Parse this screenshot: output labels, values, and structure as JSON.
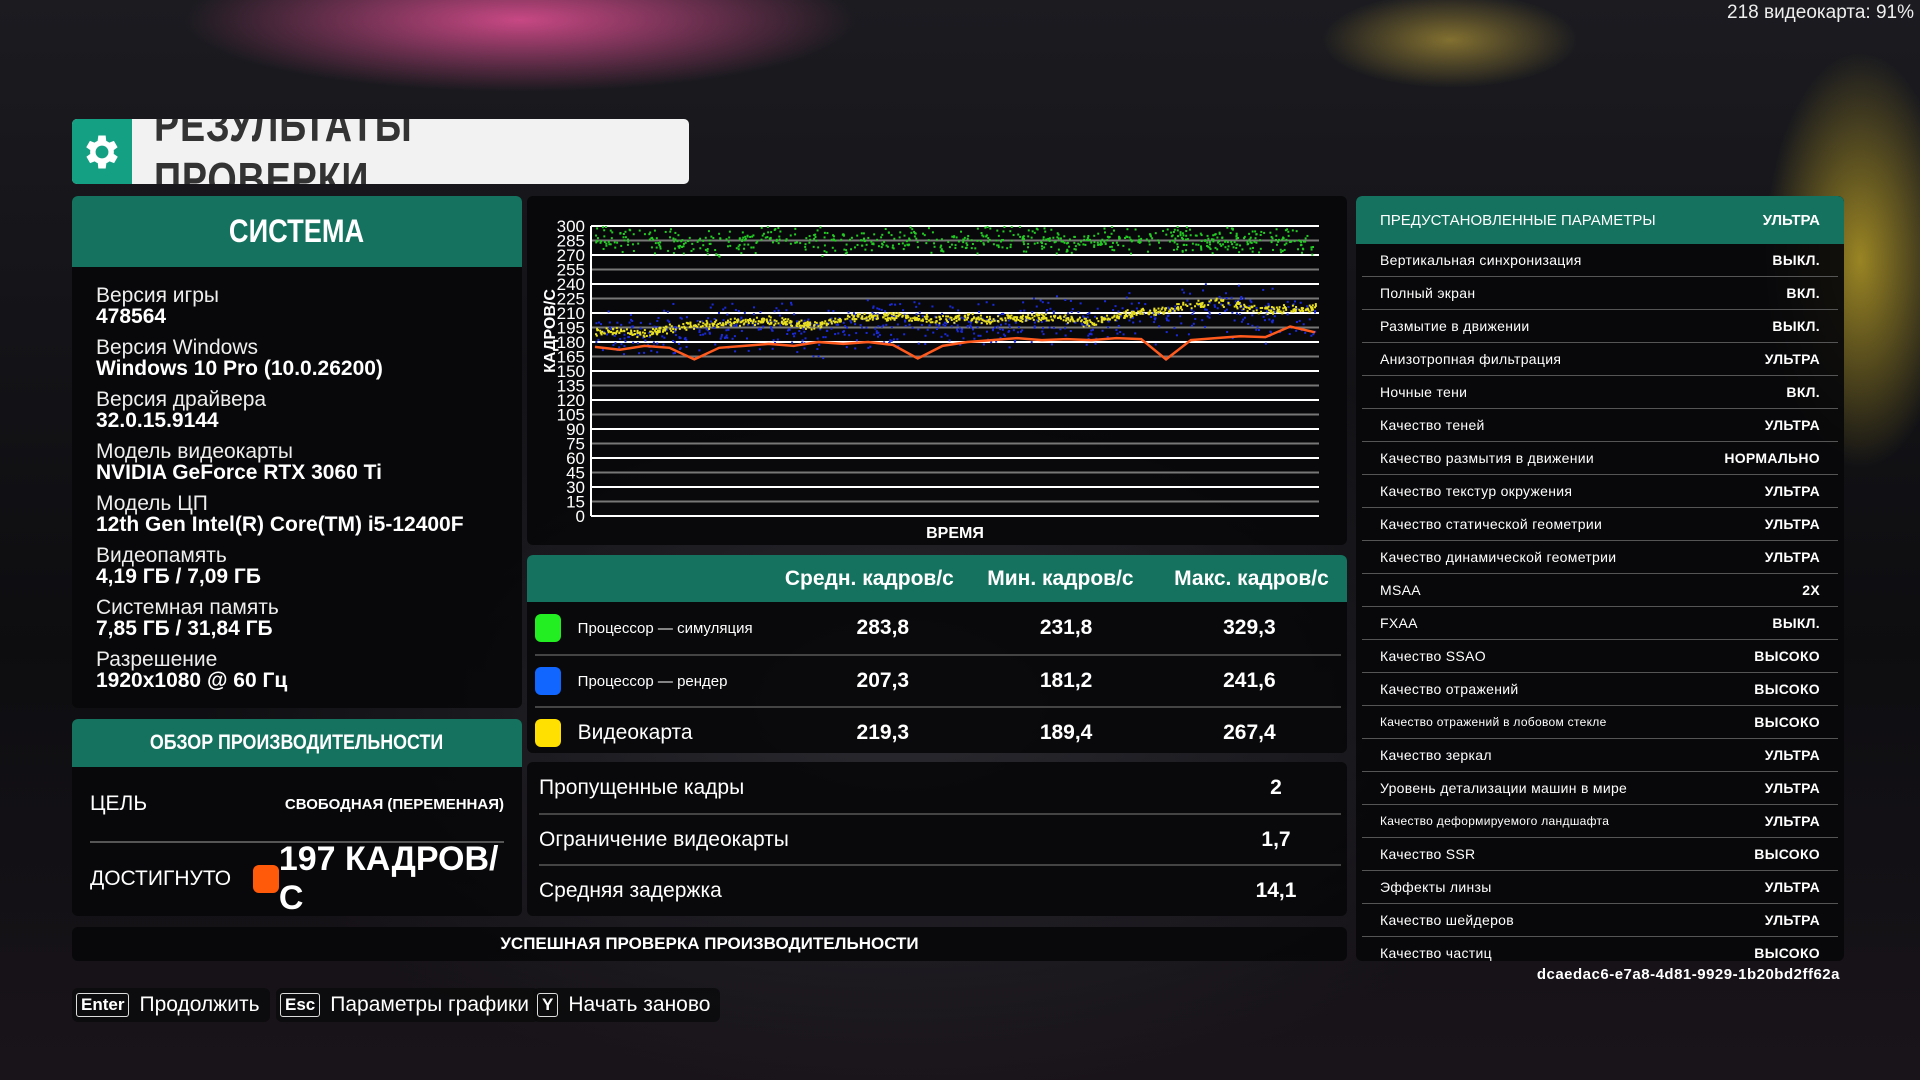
{
  "overlay": {
    "gpu_readout": "218 видеокарта: 91%"
  },
  "title": "РЕЗУЛЬТАТЫ ПРОВЕРКИ",
  "system": {
    "header": "СИСТЕМА",
    "items": [
      {
        "label": "Версия игры",
        "value": "478564"
      },
      {
        "label": "Версия Windows",
        "value": "Windows 10 Pro (10.0.26200)"
      },
      {
        "label": "Версия драйвера",
        "value": "32.0.15.9144"
      },
      {
        "label": "Модель видеокарты",
        "value": "NVIDIA GeForce RTX 3060 Ti"
      },
      {
        "label": "Модель ЦП",
        "value": "12th Gen Intel(R) Core(TM) i5-12400F"
      },
      {
        "label": "Видеопамять",
        "value": "4,19 ГБ / 7,09 ГБ"
      },
      {
        "label": "Системная память",
        "value": "7,85 ГБ / 31,84 ГБ"
      },
      {
        "label": "Разрешение",
        "value": "1920x1080 @ 60 Гц"
      }
    ]
  },
  "overview": {
    "header": "ОБЗОР ПРОИЗВОДИТЕЛЬНОСТИ",
    "target_label": "ЦЕЛЬ",
    "target_value": "СВОБОДНАЯ (ПЕРЕМЕННАЯ)",
    "achieved_label": "ДОСТИГНУТО",
    "achieved_value": "197 КАДРОВ/С",
    "achieved_color": "#ff5a0a"
  },
  "chart_data": {
    "type": "scatter",
    "xlabel": "ВРЕМЯ",
    "ylabel": "КАДРОВ/С",
    "ylim": [
      0,
      300
    ],
    "yticks": [
      "0",
      "15",
      "30",
      "45",
      "60",
      "75",
      "90",
      "105",
      "120",
      "135",
      "150",
      "165",
      "180",
      "195",
      "210",
      "225",
      "240",
      "255",
      "270",
      "285",
      "300"
    ],
    "grid": true,
    "series": [
      {
        "color": "#22cc22",
        "kind": "scatter",
        "values": [
          288,
          286,
          285,
          287,
          284,
          280,
          286,
          288,
          287,
          285,
          283,
          286,
          288,
          287,
          286,
          285,
          287,
          288,
          286,
          284,
          285,
          287,
          286,
          288,
          287,
          285,
          286,
          287,
          286,
          284
        ]
      },
      {
        "color": "#1a2ad8",
        "kind": "scatter",
        "values": [
          190,
          188,
          186,
          192,
          194,
          196,
          198,
          197,
          194,
          190,
          198,
          200,
          202,
          200,
          199,
          201,
          198,
          201,
          202,
          200,
          194,
          202,
          206,
          207,
          212,
          214,
          212,
          208,
          209,
          210
        ]
      },
      {
        "color": "#e8e020",
        "kind": "band",
        "values": [
          192,
          191,
          190,
          195,
          198,
          200,
          202,
          203,
          200,
          198,
          205,
          207,
          208,
          205,
          204,
          206,
          203,
          206,
          207,
          205,
          200,
          208,
          212,
          213,
          220,
          222,
          218,
          214,
          215,
          216
        ]
      },
      {
        "color": "#ff5a1e",
        "kind": "line",
        "values": [
          175,
          172,
          176,
          174,
          162,
          174,
          176,
          178,
          176,
          180,
          178,
          180,
          177,
          163,
          176,
          180,
          182,
          184,
          182,
          183,
          182,
          184,
          183,
          162,
          182,
          184,
          186,
          185,
          196,
          190
        ]
      }
    ]
  },
  "stats": {
    "headers": [
      "Средн. кадров/с",
      "Мин. кадров/с",
      "Макс. кадров/с"
    ],
    "rows": [
      {
        "name": "Процессор — симуляция",
        "color": "#22ee22",
        "avg": "283,8",
        "min": "231,8",
        "max": "329,3"
      },
      {
        "name": "Процессор — рендер",
        "color": "#1166ff",
        "avg": "207,3",
        "min": "181,2",
        "max": "241,6"
      },
      {
        "name": "Видеокарта",
        "color": "#ffe000",
        "avg": "219,3",
        "min": "189,4",
        "max": "267,4"
      }
    ]
  },
  "metrics": [
    {
      "label": "Пропущенные кадры",
      "value": "2"
    },
    {
      "label": "Ограничение видеокарты",
      "value": "1,7"
    },
    {
      "label": "Средняя задержка",
      "value": "14,1"
    }
  ],
  "status": "УСПЕШНАЯ ПРОВЕРКА ПРОИЗВОДИТЕЛЬНОСТИ",
  "buttons": [
    {
      "key": "Enter",
      "label": "Продолжить"
    },
    {
      "key": "Esc",
      "label": "Параметры графики"
    },
    {
      "key": "Y",
      "label": "Начать заново"
    }
  ],
  "settings": {
    "header_label": "ПРЕДУСТАНОВЛЕННЫЕ ПАРАМЕТРЫ",
    "header_value": "УЛЬТРА",
    "items": [
      {
        "label": "Вертикальная синхронизация",
        "value": "ВЫКЛ."
      },
      {
        "label": "Полный экран",
        "value": "ВКЛ."
      },
      {
        "label": "Размытие в движении",
        "value": "ВЫКЛ."
      },
      {
        "label": "Анизотропная фильтрация",
        "value": "УЛЬТРА"
      },
      {
        "label": "Ночные тени",
        "value": "ВКЛ."
      },
      {
        "label": "Качество теней",
        "value": "УЛЬТРА"
      },
      {
        "label": "Качество размытия в движении",
        "value": "НОРМАЛЬНО"
      },
      {
        "label": "Качество текстур окружения",
        "value": "УЛЬТРА"
      },
      {
        "label": "Качество статической геометрии",
        "value": "УЛЬТРА"
      },
      {
        "label": "Качество динамической геометрии",
        "value": "УЛЬТРА"
      },
      {
        "label": "MSAA",
        "value": "2X"
      },
      {
        "label": "FXAA",
        "value": "ВЫКЛ."
      },
      {
        "label": "Качество SSAO",
        "value": "ВЫСОКО"
      },
      {
        "label": "Качество отражений",
        "value": "ВЫСОКО"
      },
      {
        "label": "Качество отражений в лобовом стекле",
        "value": "ВЫСОКО"
      },
      {
        "label": "Качество зеркал",
        "value": "УЛЬТРА"
      },
      {
        "label": "Уровень детализации машин в мире",
        "value": "УЛЬТРА"
      },
      {
        "label": "Качество деформируемого ландшафта",
        "value": "УЛЬТРА"
      },
      {
        "label": "Качество SSR",
        "value": "ВЫСОКО"
      },
      {
        "label": "Эффекты линзы",
        "value": "УЛЬТРА"
      },
      {
        "label": "Качество шейдеров",
        "value": "УЛЬТРА"
      },
      {
        "label": "Качество частиц",
        "value": "ВЫСОКО"
      }
    ]
  },
  "session_id": "dcaedac6-e7a8-4d81-9929-1b20bd2ff62a"
}
